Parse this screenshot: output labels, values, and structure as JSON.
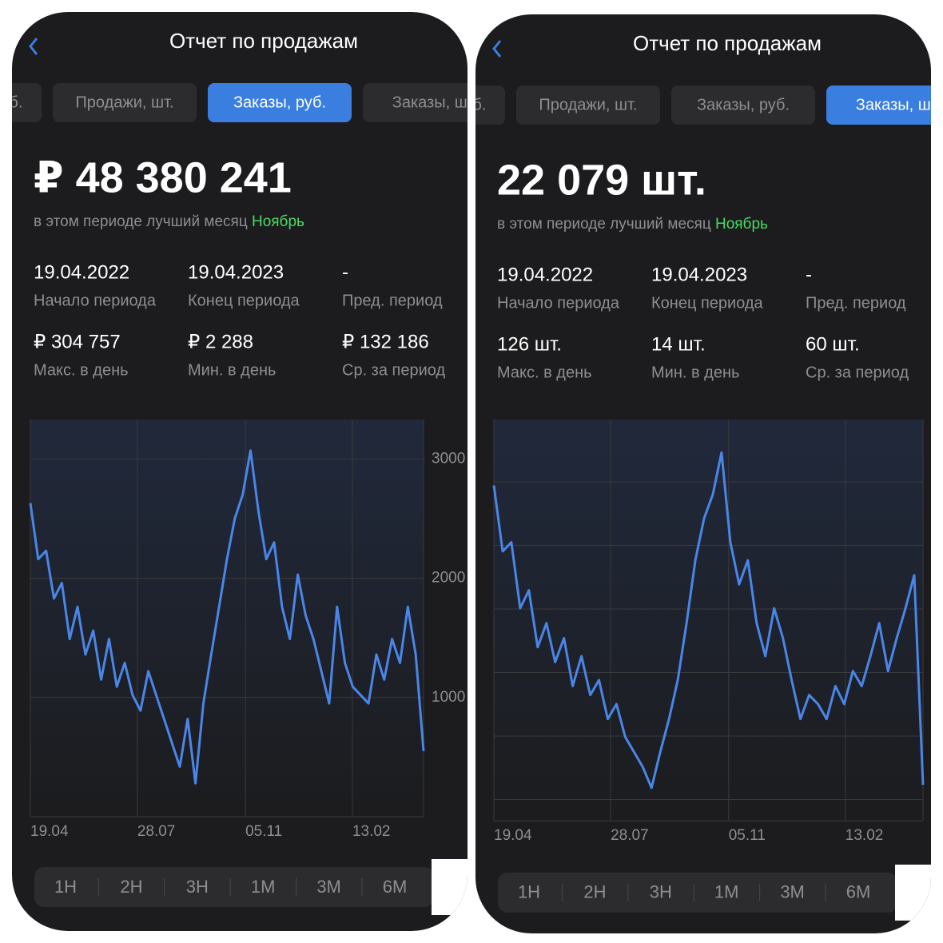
{
  "panels": [
    {
      "title": "Отчет по продажам",
      "tabs": [
        "Продажи, руб.",
        "Продажи, шт.",
        "Заказы, руб.",
        "Заказы, шт."
      ],
      "active_tab": 2,
      "total": "₽ 48 380 241",
      "best_month_text": "в этом периоде лучший месяц",
      "best_month": "Ноябрь",
      "stats": [
        {
          "value": "19.04.2022",
          "label": "Начало периода"
        },
        {
          "value": "19.04.2023",
          "label": "Конец периода"
        },
        {
          "value": "-",
          "label": "Пред. период"
        },
        {
          "value": "₽ 304 757",
          "label": "Макс. в день"
        },
        {
          "value": "₽ 2 288",
          "label": "Мин. в день"
        },
        {
          "value": "₽ 132 186",
          "label": "Ср. за период"
        }
      ],
      "chart": {
        "type": "line",
        "color": "#4a86e8",
        "ylim": [
          0,
          333000
        ],
        "yticks": [
          {
            "value": 100000,
            "label": "1000"
          },
          {
            "value": 200000,
            "label": "2000"
          },
          {
            "value": 300000,
            "label": "3000"
          }
        ],
        "x_labels": [
          "19.04",
          "28.07",
          "05.11",
          "13.02"
        ],
        "values": [
          263000,
          216000,
          223000,
          183000,
          196000,
          149000,
          176000,
          136000,
          156000,
          115000,
          149000,
          109000,
          129000,
          102000,
          89000,
          122000,
          102000,
          82000,
          62000,
          42000,
          82000,
          28000,
          95000,
          136000,
          176000,
          216000,
          250000,
          270000,
          307000,
          256000,
          216000,
          230000,
          176000,
          149000,
          203000,
          169000,
          149000,
          122000,
          95000,
          176000,
          129000,
          109000,
          102000,
          95000,
          136000,
          115000,
          149000,
          129000,
          176000,
          136000,
          55000
        ]
      },
      "periods": [
        "1H",
        "2H",
        "3H",
        "1M",
        "3M",
        "6M"
      ]
    },
    {
      "title": "Отчет по продажам",
      "tabs": [
        "Продажи, руб.",
        "Продажи, шт.",
        "Заказы, руб.",
        "Заказы, шт."
      ],
      "active_tab": 3,
      "total": "22 079 шт.",
      "best_month_text": "в этом периоде лучший месяц",
      "best_month": "Ноябрь",
      "stats": [
        {
          "value": "19.04.2022",
          "label": "Начало периода"
        },
        {
          "value": "19.04.2023",
          "label": "Конец периода"
        },
        {
          "value": "-",
          "label": "Пред. период"
        },
        {
          "value": "126 шт.",
          "label": "Макс. в день"
        },
        {
          "value": "14 шт.",
          "label": "Мин. в день"
        },
        {
          "value": "60 шт.",
          "label": "Ср. за период"
        }
      ],
      "chart": {
        "type": "line",
        "color": "#4a86e8",
        "ylim": [
          3,
          137
        ],
        "x_labels": [
          "19.04",
          "28.07",
          "05.11",
          "13.02"
        ],
        "values": [
          115,
          93,
          96,
          74,
          80,
          61,
          69,
          56,
          64,
          48,
          58,
          45,
          50,
          37,
          42,
          31,
          26,
          21,
          14,
          26,
          37,
          50,
          69,
          90,
          104,
          112,
          126,
          96,
          82,
          90,
          69,
          58,
          74,
          64,
          50,
          37,
          45,
          42,
          37,
          48,
          42,
          53,
          48,
          58,
          69,
          53,
          64,
          74,
          85,
          15
        ]
      },
      "periods": [
        "1H",
        "2H",
        "3H",
        "1M",
        "3M",
        "6M"
      ]
    }
  ]
}
